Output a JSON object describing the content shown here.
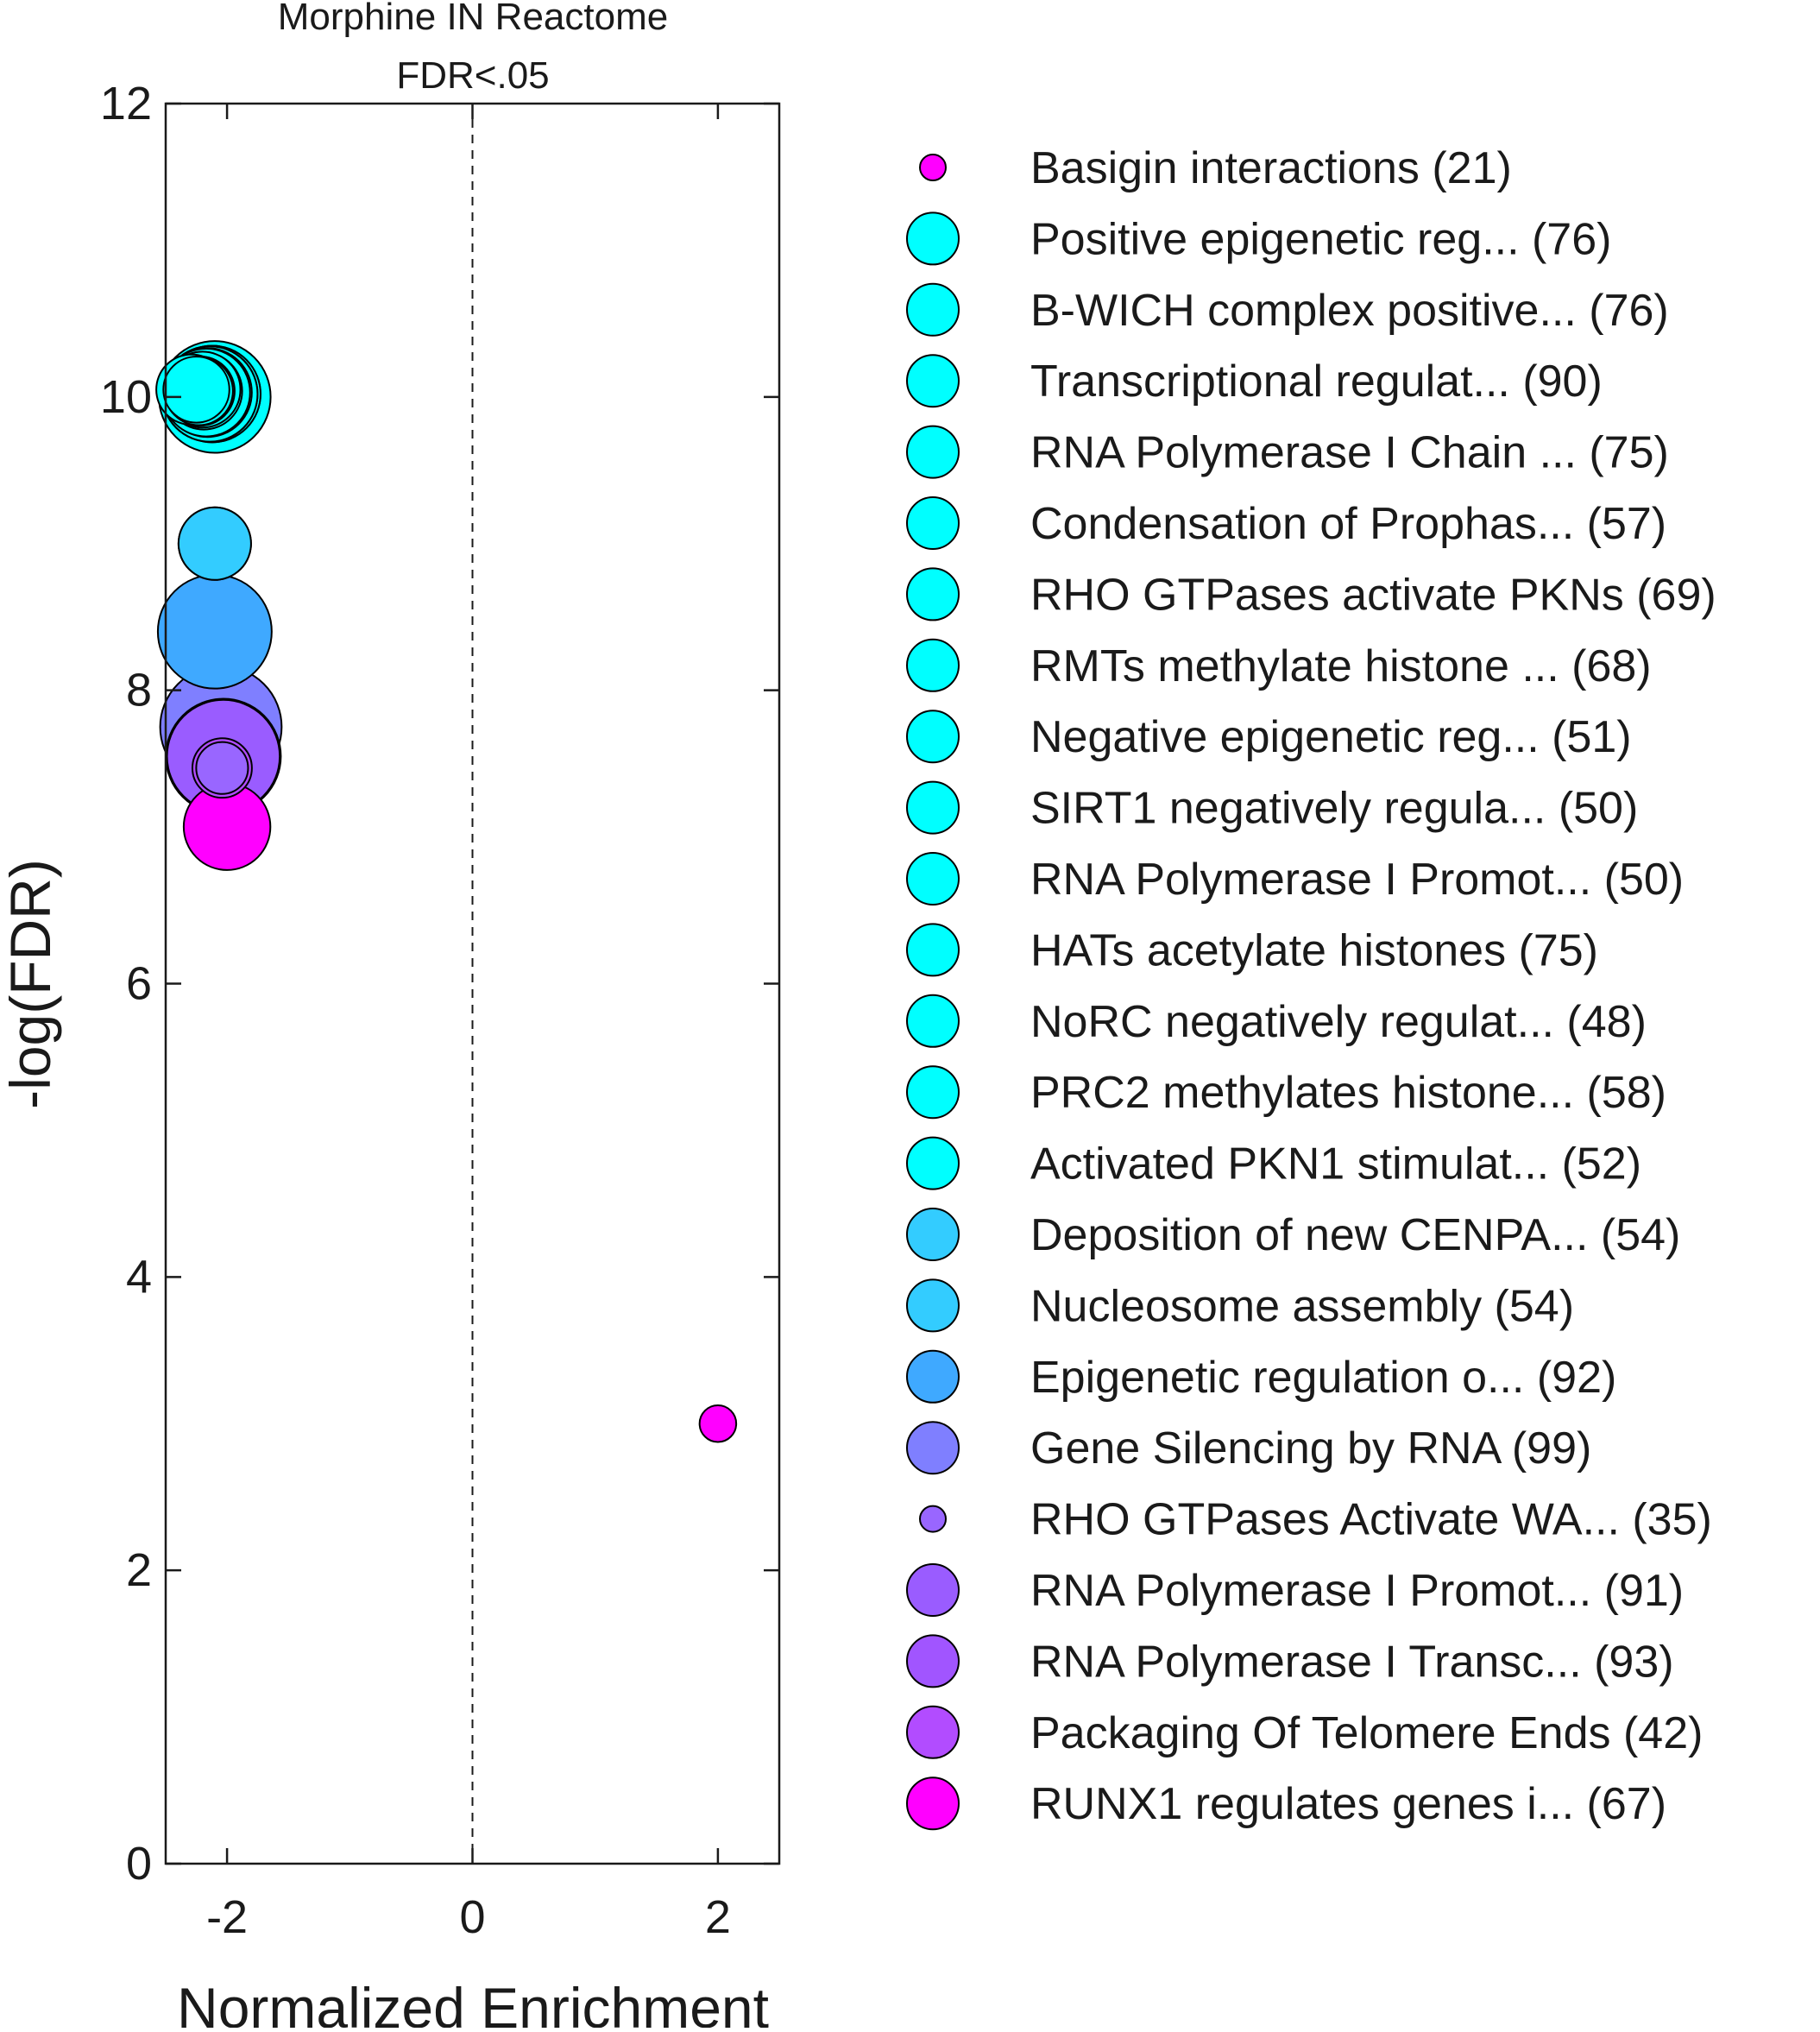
{
  "chart_data": {
    "type": "scatter",
    "title": "Morphine IN Reactome",
    "subtitle": "FDR<.05",
    "xlabel": "Normalized Enrichment",
    "ylabel": "-log(FDR)",
    "xlim": [
      -2.5,
      2.5
    ],
    "ylim": [
      0,
      12
    ],
    "xticks": [
      -2,
      0,
      2
    ],
    "yticks": [
      0,
      2,
      4,
      6,
      8,
      10,
      12
    ],
    "reference_line_x": 0,
    "grid": false,
    "legend_position": "right",
    "series": [
      {
        "name": "Basigin interactions (21)",
        "x": 2.0,
        "y": 3.0,
        "size": 21,
        "color": "#ff00ff",
        "legend_marker_color": "#ff00ff"
      },
      {
        "name": "Positive epigenetic reg... (76)",
        "x": -2.12,
        "y": 10.02,
        "size": 76,
        "color": "#00ffff",
        "legend_marker_color": "#00ffff"
      },
      {
        "name": "B-WICH complex positive... (76)",
        "x": -2.12,
        "y": 10.02,
        "size": 76,
        "color": "#00ffff",
        "legend_marker_color": "#00ffff"
      },
      {
        "name": "Transcriptional regulat... (90)",
        "x": -2.1,
        "y": 10.0,
        "size": 90,
        "color": "#00ffff",
        "legend_marker_color": "#00ffff"
      },
      {
        "name": "RNA Polymerase I Chain ... (75)",
        "x": -2.14,
        "y": 10.02,
        "size": 75,
        "color": "#00ffff",
        "legend_marker_color": "#00ffff"
      },
      {
        "name": "Condensation of Prophas... (57)",
        "x": -2.2,
        "y": 10.05,
        "size": 57,
        "color": "#00ffff",
        "legend_marker_color": "#00ffff"
      },
      {
        "name": "RHO GTPases activate PKNs (69)",
        "x": -2.16,
        "y": 10.03,
        "size": 69,
        "color": "#00ffff",
        "legend_marker_color": "#00ffff"
      },
      {
        "name": "RMTs methylate histone ... (68)",
        "x": -2.17,
        "y": 10.03,
        "size": 68,
        "color": "#00ffff",
        "legend_marker_color": "#00ffff"
      },
      {
        "name": "Negative epigenetic reg... (51)",
        "x": -2.22,
        "y": 10.04,
        "size": 51,
        "color": "#00ffff",
        "legend_marker_color": "#00ffff"
      },
      {
        "name": "SIRT1 negatively regula... (50)",
        "x": -2.23,
        "y": 10.04,
        "size": 50,
        "color": "#00ffff",
        "legend_marker_color": "#00ffff"
      },
      {
        "name": "RNA Polymerase I Promot... (50)",
        "x": -2.23,
        "y": 10.04,
        "size": 50,
        "color": "#00ffff",
        "legend_marker_color": "#00ffff"
      },
      {
        "name": "HATs acetylate histones (75)",
        "x": -2.14,
        "y": 10.02,
        "size": 75,
        "color": "#00ffff",
        "legend_marker_color": "#00ffff"
      },
      {
        "name": "NoRC negatively regulat... (48)",
        "x": -2.25,
        "y": 10.05,
        "size": 48,
        "color": "#00ffff",
        "legend_marker_color": "#00ffff"
      },
      {
        "name": "PRC2 methylates histone... (58)",
        "x": -2.19,
        "y": 10.04,
        "size": 58,
        "color": "#00ffff",
        "legend_marker_color": "#00ffff"
      },
      {
        "name": "Activated PKN1 stimulat... (52)",
        "x": -2.29,
        "y": 10.05,
        "size": 52,
        "color": "#00ffff",
        "legend_marker_color": "#00ffff"
      },
      {
        "name": "Deposition of new CENPA... (54)",
        "x": -2.1,
        "y": 9.0,
        "size": 54,
        "color": "#33ccff",
        "legend_marker_color": "#33ccff"
      },
      {
        "name": "Nucleosome assembly (54)",
        "x": -2.1,
        "y": 9.0,
        "size": 54,
        "color": "#33ccff",
        "legend_marker_color": "#33ccff"
      },
      {
        "name": "Epigenetic regulation o... (92)",
        "x": -2.1,
        "y": 8.4,
        "size": 92,
        "color": "#3fa9ff",
        "legend_marker_color": "#3fa9ff"
      },
      {
        "name": "Gene Silencing by RNA (99)",
        "x": -2.05,
        "y": 7.75,
        "size": 99,
        "color": "#7f7fff",
        "legend_marker_color": "#7f7fff"
      },
      {
        "name": "RHO GTPases Activate WA... (35)",
        "x": -2.04,
        "y": 7.47,
        "size": 35,
        "color": "#9966ff",
        "legend_marker_color": "#9966ff"
      },
      {
        "name": "RNA Polymerase I Promot... (91)",
        "x": -2.03,
        "y": 7.55,
        "size": 91,
        "color": "#9a5cff",
        "legend_marker_color": "#9a5cff"
      },
      {
        "name": "RNA Polymerase I Transc... (93)",
        "x": -2.03,
        "y": 7.55,
        "size": 93,
        "color": "#a155ff",
        "legend_marker_color": "#a155ff"
      },
      {
        "name": "Packaging Of Telomere Ends (42)",
        "x": -2.04,
        "y": 7.47,
        "size": 42,
        "color": "#b24cff",
        "legend_marker_color": "#b24cff"
      },
      {
        "name": "RUNX1 regulates genes i... (67)",
        "x": -2.0,
        "y": 7.07,
        "size": 67,
        "color": "#ff00ff",
        "legend_marker_color": "#ff00ff"
      }
    ]
  }
}
